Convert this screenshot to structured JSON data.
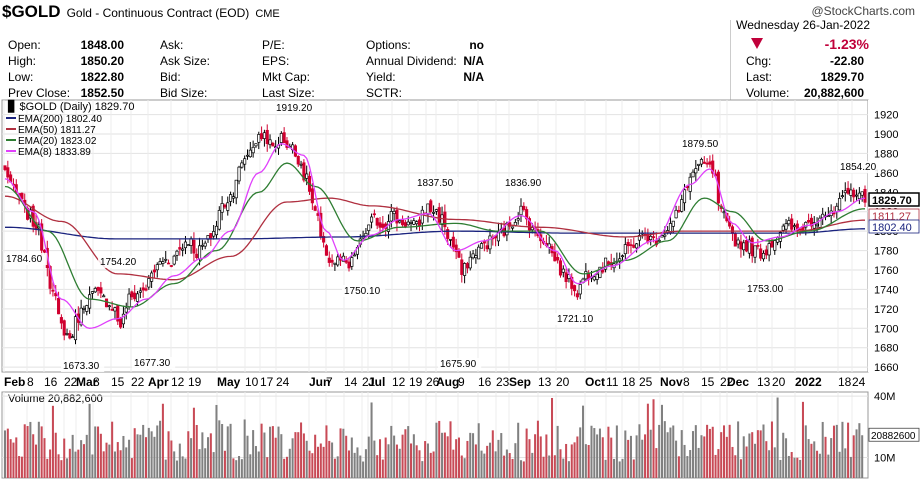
{
  "header": {
    "symbol": "$GOLD",
    "name": "Gold - Continuous Contract (EOD)",
    "exchange": "CME",
    "watermark": "@StockCharts.com",
    "date": "Wednesday  26-Jan-2022",
    "change_pct": "-1.23%",
    "quote_left": [
      {
        "label": "Open:",
        "value": "1848.00"
      },
      {
        "label": "High:",
        "value": "1850.20"
      },
      {
        "label": "Low:",
        "value": "1822.80"
      },
      {
        "label": "Prev Close:",
        "value": "1852.50"
      }
    ],
    "quote_mid": [
      "Ask:",
      "Ask Size:",
      "Bid:",
      "Bid Size:"
    ],
    "quote_mid2": [
      "P/E:",
      "EPS:",
      "Mkt Cap:",
      "Last Size:"
    ],
    "quote_mid3": [
      {
        "label": "Options:",
        "value": "no"
      },
      {
        "label": "Annual Dividend:",
        "value": "N/A"
      },
      {
        "label": "Yield:",
        "value": "N/A"
      },
      {
        "label": "SCTR:",
        "value": ""
      }
    ],
    "quote_right": [
      {
        "label": "Chg:",
        "value": "-22.80"
      },
      {
        "label": "Last:",
        "value": "1829.70"
      },
      {
        "label": "Volume:",
        "value": "20,882,600"
      }
    ],
    "colors": {
      "down": "#c0003a",
      "up": "#000000"
    }
  },
  "chart_data": [
    {
      "type": "line",
      "subtype": "candlestick",
      "title": "$GOLD (Daily) 1829.70",
      "legend": [
        {
          "name": "EMA(200) 1802.40",
          "color": "#1a237e"
        },
        {
          "name": "EMA(50) 1811.27",
          "color": "#b03040"
        },
        {
          "name": "EMA(20) 1823.02",
          "color": "#2e7d32"
        },
        {
          "name": "EMA(8) 1833.89",
          "color": "#e040fb"
        }
      ],
      "legend_placement": "top-left",
      "ylim": [
        1655,
        1935
      ],
      "yticks": [
        1660,
        1680,
        1700,
        1720,
        1740,
        1760,
        1780,
        1800,
        1820,
        1840,
        1860,
        1880,
        1900,
        1920
      ],
      "grid": true,
      "x_labels": [
        {
          "t": "Feb",
          "bold": true
        },
        {
          "t": "8",
          "bold": false
        },
        {
          "t": "16",
          "bold": false
        },
        {
          "t": "22",
          "bold": false
        },
        {
          "t": "Mar",
          "bold": true
        },
        {
          "t": "8",
          "bold": false
        },
        {
          "t": "15",
          "bold": false
        },
        {
          "t": "22",
          "bold": false
        },
        {
          "t": "Apr",
          "bold": true
        },
        {
          "t": "12",
          "bold": false
        },
        {
          "t": "19",
          "bold": false
        },
        {
          "t": "May",
          "bold": true
        },
        {
          "t": "10",
          "bold": false
        },
        {
          "t": "17",
          "bold": false
        },
        {
          "t": "24",
          "bold": false
        },
        {
          "t": "Jun",
          "bold": true
        },
        {
          "t": "7",
          "bold": false
        },
        {
          "t": "14",
          "bold": false
        },
        {
          "t": "21",
          "bold": false
        },
        {
          "t": "Jul",
          "bold": true
        },
        {
          "t": "12",
          "bold": false
        },
        {
          "t": "19",
          "bold": false
        },
        {
          "t": "26",
          "bold": false
        },
        {
          "t": "Aug",
          "bold": true
        },
        {
          "t": "9",
          "bold": false
        },
        {
          "t": "16",
          "bold": false
        },
        {
          "t": "23",
          "bold": false
        },
        {
          "t": "Sep",
          "bold": true
        },
        {
          "t": "13",
          "bold": false
        },
        {
          "t": "20",
          "bold": false
        },
        {
          "t": "Oct",
          "bold": true
        },
        {
          "t": "11",
          "bold": false
        },
        {
          "t": "18",
          "bold": false
        },
        {
          "t": "25",
          "bold": false
        },
        {
          "t": "Nov",
          "bold": true
        },
        {
          "t": "8",
          "bold": false
        },
        {
          "t": "15",
          "bold": false
        },
        {
          "t": "22",
          "bold": false
        },
        {
          "t": "Dec",
          "bold": true
        },
        {
          "t": "13",
          "bold": false
        },
        {
          "t": "20",
          "bold": false
        },
        {
          "t": "2022",
          "bold": true
        },
        {
          "t": "18",
          "bold": false
        },
        {
          "t": "24",
          "bold": false
        }
      ],
      "annotations": [
        {
          "label": "1784.60",
          "value": 1784.6
        },
        {
          "label": "1754.20",
          "value": 1754.2
        },
        {
          "label": "1673.30",
          "value": 1673.3
        },
        {
          "label": "1677.30",
          "value": 1677.3
        },
        {
          "label": "1919.20",
          "value": 1919.2
        },
        {
          "label": "1750.10",
          "value": 1750.1
        },
        {
          "label": "1837.50",
          "value": 1837.5
        },
        {
          "label": "1675.90",
          "value": 1675.9
        },
        {
          "label": "1836.90",
          "value": 1836.9
        },
        {
          "label": "1721.10",
          "value": 1721.1
        },
        {
          "label": "1879.50",
          "value": 1879.5
        },
        {
          "label": "1753.00",
          "value": 1753.0
        },
        {
          "label": "1854.20",
          "value": 1854.2
        }
      ],
      "price_tags": [
        {
          "label": "1829.70",
          "value": 1829.7,
          "color": "#000000",
          "bold": true
        },
        {
          "label": "1811.27",
          "value": 1811.27,
          "color": "#b03040",
          "bold": false
        },
        {
          "label": "1802.40",
          "value": 1802.4,
          "color": "#1a237e",
          "bold": false
        }
      ],
      "ohlc_anchors": [
        [
          0,
          1862
        ],
        [
          4,
          1838
        ],
        [
          8,
          1818
        ],
        [
          11,
          1806
        ],
        [
          14,
          1780
        ],
        [
          17,
          1736
        ],
        [
          20,
          1702
        ],
        [
          23,
          1690
        ],
        [
          26,
          1712
        ],
        [
          29,
          1730
        ],
        [
          32,
          1736
        ],
        [
          35,
          1730
        ],
        [
          38,
          1724
        ],
        [
          41,
          1704
        ],
        [
          44,
          1730
        ],
        [
          47,
          1736
        ],
        [
          50,
          1742
        ],
        [
          53,
          1760
        ],
        [
          56,
          1770
        ],
        [
          59,
          1770
        ],
        [
          62,
          1782
        ],
        [
          65,
          1792
        ],
        [
          68,
          1778
        ],
        [
          71,
          1786
        ],
        [
          74,
          1800
        ],
        [
          77,
          1826
        ],
        [
          80,
          1836
        ],
        [
          83,
          1862
        ],
        [
          86,
          1880
        ],
        [
          89,
          1893
        ],
        [
          92,
          1900
        ],
        [
          95,
          1885
        ],
        [
          98,
          1896
        ],
        [
          101,
          1888
        ],
        [
          104,
          1876
        ],
        [
          107,
          1852
        ],
        [
          110,
          1820
        ],
        [
          113,
          1782
        ],
        [
          116,
          1768
        ],
        [
          119,
          1770
        ],
        [
          122,
          1762
        ],
        [
          125,
          1782
        ],
        [
          128,
          1800
        ],
        [
          131,
          1812
        ],
        [
          134,
          1806
        ],
        [
          137,
          1818
        ],
        [
          140,
          1810
        ],
        [
          143,
          1808
        ],
        [
          146,
          1804
        ],
        [
          149,
          1824
        ],
        [
          152,
          1822
        ],
        [
          155,
          1812
        ],
        [
          158,
          1790
        ],
        [
          160,
          1778
        ],
        [
          162,
          1756
        ],
        [
          165,
          1772
        ],
        [
          168,
          1782
        ],
        [
          171,
          1788
        ],
        [
          174,
          1794
        ],
        [
          177,
          1800
        ],
        [
          180,
          1810
        ],
        [
          183,
          1822
        ],
        [
          186,
          1808
        ],
        [
          189,
          1796
        ],
        [
          192,
          1790
        ],
        [
          195,
          1772
        ],
        [
          198,
          1756
        ],
        [
          201,
          1746
        ],
        [
          203,
          1738
        ],
        [
          206,
          1756
        ],
        [
          209,
          1760
        ],
        [
          212,
          1764
        ],
        [
          215,
          1770
        ],
        [
          218,
          1772
        ],
        [
          221,
          1782
        ],
        [
          224,
          1790
        ],
        [
          227,
          1796
        ],
        [
          230,
          1790
        ],
        [
          233,
          1798
        ],
        [
          236,
          1806
        ],
        [
          239,
          1820
        ],
        [
          242,
          1850
        ],
        [
          245,
          1864
        ],
        [
          248,
          1868
        ],
        [
          251,
          1862
        ],
        [
          254,
          1818
        ],
        [
          257,
          1800
        ],
        [
          260,
          1788
        ],
        [
          263,
          1786
        ],
        [
          266,
          1780
        ],
        [
          269,
          1778
        ],
        [
          272,
          1790
        ],
        [
          275,
          1800
        ],
        [
          278,
          1805
        ],
        [
          281,
          1800
        ],
        [
          284,
          1808
        ],
        [
          287,
          1812
        ],
        [
          290,
          1820
        ],
        [
          293,
          1814
        ],
        [
          296,
          1828
        ],
        [
          299,
          1838
        ],
        [
          302,
          1842
        ],
        [
          305,
          1832
        ]
      ],
      "ema_200_anchors": [
        [
          0,
          1804
        ],
        [
          40,
          1792
        ],
        [
          80,
          1792
        ],
        [
          120,
          1794
        ],
        [
          160,
          1800
        ],
        [
          200,
          1798
        ],
        [
          240,
          1798
        ],
        [
          280,
          1798
        ],
        [
          305,
          1802.4
        ]
      ],
      "ema_50_anchors": [
        [
          0,
          1836
        ],
        [
          20,
          1810
        ],
        [
          40,
          1756
        ],
        [
          60,
          1750
        ],
        [
          80,
          1774
        ],
        [
          100,
          1830
        ],
        [
          115,
          1834
        ],
        [
          130,
          1826
        ],
        [
          160,
          1812
        ],
        [
          190,
          1804
        ],
        [
          220,
          1794
        ],
        [
          240,
          1800
        ],
        [
          260,
          1800
        ],
        [
          280,
          1800
        ],
        [
          305,
          1811.27
        ]
      ],
      "ema_20_anchors": [
        [
          0,
          1846
        ],
        [
          15,
          1800
        ],
        [
          30,
          1730
        ],
        [
          45,
          1722
        ],
        [
          60,
          1746
        ],
        [
          75,
          1780
        ],
        [
          90,
          1840
        ],
        [
          100,
          1870
        ],
        [
          110,
          1846
        ],
        [
          125,
          1790
        ],
        [
          140,
          1804
        ],
        [
          160,
          1808
        ],
        [
          175,
          1800
        ],
        [
          190,
          1800
        ],
        [
          205,
          1756
        ],
        [
          220,
          1770
        ],
        [
          235,
          1790
        ],
        [
          248,
          1834
        ],
        [
          258,
          1820
        ],
        [
          270,
          1790
        ],
        [
          285,
          1800
        ],
        [
          305,
          1823.02
        ]
      ],
      "ema_8_anchors": [
        [
          0,
          1854
        ],
        [
          10,
          1820
        ],
        [
          20,
          1730
        ],
        [
          30,
          1700
        ],
        [
          40,
          1710
        ],
        [
          50,
          1730
        ],
        [
          60,
          1754
        ],
        [
          70,
          1772
        ],
        [
          80,
          1800
        ],
        [
          90,
          1860
        ],
        [
          98,
          1890
        ],
        [
          106,
          1878
        ],
        [
          114,
          1800
        ],
        [
          120,
          1770
        ],
        [
          130,
          1796
        ],
        [
          140,
          1812
        ],
        [
          150,
          1818
        ],
        [
          160,
          1780
        ],
        [
          170,
          1790
        ],
        [
          183,
          1816
        ],
        [
          195,
          1780
        ],
        [
          203,
          1746
        ],
        [
          215,
          1764
        ],
        [
          230,
          1790
        ],
        [
          243,
          1848
        ],
        [
          250,
          1864
        ],
        [
          258,
          1808
        ],
        [
          265,
          1788
        ],
        [
          275,
          1794
        ],
        [
          285,
          1806
        ],
        [
          295,
          1820
        ],
        [
          305,
          1833.89
        ]
      ]
    },
    {
      "type": "bar",
      "title": "Volume 20,882,600",
      "ylim": [
        0,
        42
      ],
      "y_unit": "M",
      "yticks": [
        {
          "label": "40M",
          "value": 40
        },
        {
          "label": "10M",
          "value": 10
        }
      ],
      "last_value_tag": "20882600",
      "last_value": 20.88,
      "bar_count": 305,
      "colors": {
        "up": "#808080",
        "down": "#c84a56"
      }
    }
  ]
}
